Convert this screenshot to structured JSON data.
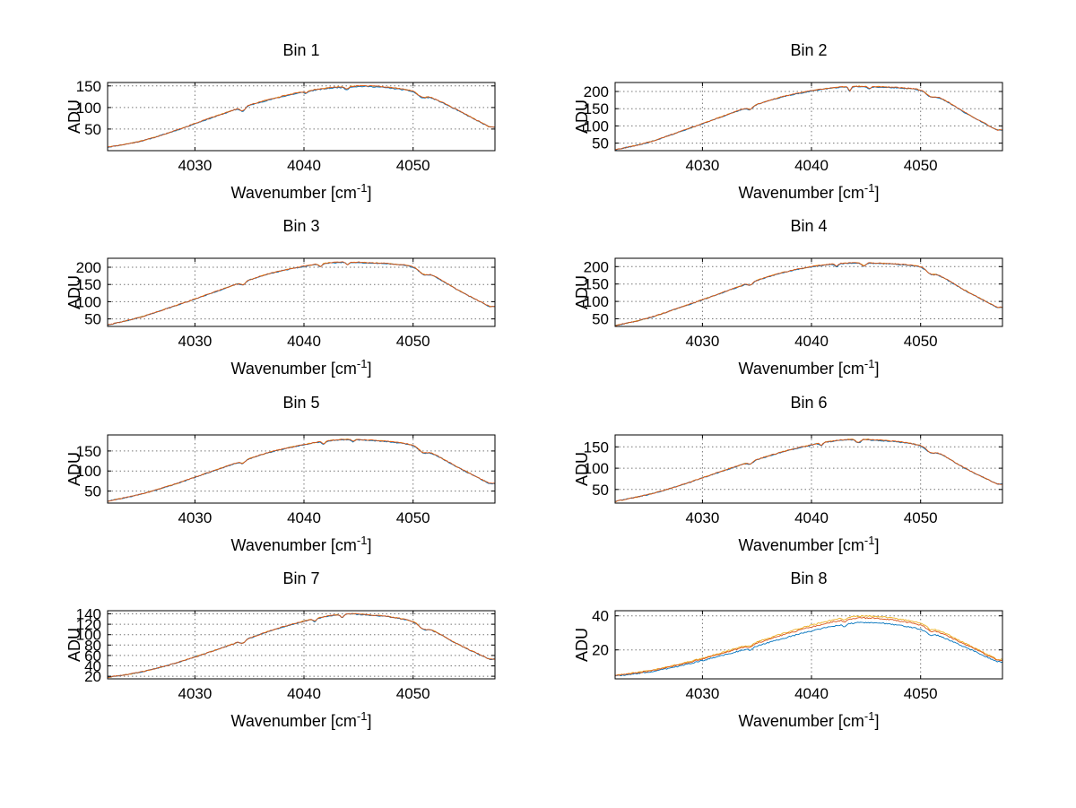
{
  "page": {
    "background": "#ffffff"
  },
  "labels": {
    "ylabel": "ADU",
    "xlabel_main": "Wavenumber [cm",
    "xlabel_sup": "-1",
    "xlabel_close": "]"
  },
  "chart_data": [
    {
      "type": "line",
      "title": "Bin 1",
      "xlabel": "Wavenumber [cm^-1]",
      "ylabel": "ADU",
      "xlim": [
        4022,
        4057.5
      ],
      "ylim": [
        0,
        158
      ],
      "xticks": [
        4030,
        4040,
        4050
      ],
      "yticks": [
        50,
        100,
        150
      ],
      "x": [
        4022,
        4025,
        4028,
        4031,
        4034,
        4037,
        4040,
        4042,
        4044,
        4046,
        4048,
        4050,
        4052,
        4054,
        4057
      ],
      "values": [
        8,
        22,
        45,
        72,
        98,
        120,
        137,
        145,
        149,
        150,
        146,
        138,
        120,
        95,
        55
      ],
      "dips": [
        {
          "x": 4034.4,
          "w": 0.3,
          "d": 9
        },
        {
          "x": 4040.2,
          "w": 0.2,
          "d": 4
        },
        {
          "x": 4043.9,
          "w": 0.25,
          "d": 6
        },
        {
          "x": 4050.8,
          "w": 0.5,
          "d": 8
        }
      ],
      "noise": 1.1,
      "series": [
        {
          "color": "#EDB120",
          "scale": 1.0,
          "seed": 5
        },
        {
          "color": "#0072BD",
          "scale": 0.99,
          "seed": 11
        },
        {
          "color": "#D95319",
          "scale": 1.0,
          "seed": 17
        }
      ]
    },
    {
      "type": "line",
      "title": "Bin 2",
      "xlabel": "Wavenumber [cm^-1]",
      "ylabel": "ADU",
      "xlim": [
        4022,
        4057.5
      ],
      "ylim": [
        28,
        226
      ],
      "xticks": [
        4030,
        4040,
        4050
      ],
      "yticks": [
        50,
        100,
        150,
        200
      ],
      "x": [
        4022,
        4025,
        4028,
        4031,
        4034,
        4037,
        4040,
        4042,
        4044,
        4046,
        4048,
        4050,
        4052,
        4054,
        4057
      ],
      "values": [
        30,
        52,
        84,
        118,
        152,
        182,
        202,
        211,
        215,
        214,
        211,
        204,
        178,
        140,
        88
      ],
      "dips": [
        {
          "x": 4034.4,
          "w": 0.3,
          "d": 8
        },
        {
          "x": 4043.5,
          "w": 0.18,
          "d": 12
        },
        {
          "x": 4045.3,
          "w": 0.2,
          "d": 6
        },
        {
          "x": 4050.9,
          "w": 0.5,
          "d": 10
        }
      ],
      "noise": 1.3,
      "series": [
        {
          "color": "#EDB120",
          "scale": 1.0,
          "seed": 105
        },
        {
          "color": "#0072BD",
          "scale": 0.995,
          "seed": 111
        },
        {
          "color": "#D95319",
          "scale": 1.0,
          "seed": 117
        }
      ]
    },
    {
      "type": "line",
      "title": "Bin 3",
      "xlabel": "Wavenumber [cm^-1]",
      "ylabel": "ADU",
      "xlim": [
        4022,
        4057.5
      ],
      "ylim": [
        28,
        226
      ],
      "xticks": [
        4030,
        4040,
        4050
      ],
      "yticks": [
        50,
        100,
        150,
        200
      ],
      "x": [
        4022,
        4025,
        4028,
        4031,
        4034,
        4037,
        4040,
        4042,
        4044,
        4046,
        4048,
        4050,
        4052,
        4054,
        4057
      ],
      "values": [
        32,
        55,
        86,
        119,
        153,
        183,
        203,
        212,
        215,
        213,
        210,
        201,
        173,
        136,
        86
      ],
      "dips": [
        {
          "x": 4034.4,
          "w": 0.3,
          "d": 8
        },
        {
          "x": 4041.5,
          "w": 0.2,
          "d": 8
        },
        {
          "x": 4044.0,
          "w": 0.2,
          "d": 7
        },
        {
          "x": 4050.9,
          "w": 0.5,
          "d": 10
        }
      ],
      "noise": 1.3,
      "series": [
        {
          "color": "#EDB120",
          "scale": 1.0,
          "seed": 205
        },
        {
          "color": "#0072BD",
          "scale": 0.995,
          "seed": 211
        },
        {
          "color": "#D95319",
          "scale": 1.0,
          "seed": 217
        }
      ]
    },
    {
      "type": "line",
      "title": "Bin 4",
      "xlabel": "Wavenumber [cm^-1]",
      "ylabel": "ADU",
      "xlim": [
        4022,
        4057.5
      ],
      "ylim": [
        28,
        224
      ],
      "xticks": [
        4030,
        4040,
        4050
      ],
      "yticks": [
        50,
        100,
        150,
        200
      ],
      "x": [
        4022,
        4025,
        4028,
        4031,
        4034,
        4037,
        4040,
        4042,
        4044,
        4046,
        4048,
        4050,
        4052,
        4054,
        4057
      ],
      "values": [
        30,
        52,
        83,
        116,
        150,
        180,
        200,
        208,
        211,
        210,
        207,
        199,
        170,
        133,
        83
      ],
      "dips": [
        {
          "x": 4034.4,
          "w": 0.3,
          "d": 7
        },
        {
          "x": 4042.3,
          "w": 0.2,
          "d": 8
        },
        {
          "x": 4044.8,
          "w": 0.25,
          "d": 9
        },
        {
          "x": 4050.9,
          "w": 0.45,
          "d": 9
        }
      ],
      "noise": 1.3,
      "series": [
        {
          "color": "#EDB120",
          "scale": 1.0,
          "seed": 305
        },
        {
          "color": "#0072BD",
          "scale": 0.995,
          "seed": 311
        },
        {
          "color": "#D95319",
          "scale": 1.0,
          "seed": 317
        }
      ]
    },
    {
      "type": "line",
      "title": "Bin 5",
      "xlabel": "Wavenumber [cm^-1]",
      "ylabel": "ADU",
      "xlim": [
        4022,
        4057.5
      ],
      "ylim": [
        20,
        190
      ],
      "xticks": [
        4030,
        4040,
        4050
      ],
      "yticks": [
        50,
        100,
        150
      ],
      "x": [
        4022,
        4025,
        4028,
        4031,
        4034,
        4037,
        4040,
        4042,
        4044,
        4046,
        4048,
        4050,
        4052,
        4054,
        4057
      ],
      "values": [
        25,
        42,
        66,
        94,
        122,
        148,
        166,
        175,
        179,
        177,
        173,
        164,
        141,
        111,
        69
      ],
      "dips": [
        {
          "x": 4034.4,
          "w": 0.3,
          "d": 6
        },
        {
          "x": 4041.8,
          "w": 0.2,
          "d": 7
        },
        {
          "x": 4044.5,
          "w": 0.2,
          "d": 5
        },
        {
          "x": 4050.9,
          "w": 0.5,
          "d": 9
        }
      ],
      "noise": 1.1,
      "series": [
        {
          "color": "#EDB120",
          "scale": 1.0,
          "seed": 405
        },
        {
          "color": "#0072BD",
          "scale": 0.995,
          "seed": 411
        },
        {
          "color": "#D95319",
          "scale": 1.0,
          "seed": 417
        }
      ]
    },
    {
      "type": "line",
      "title": "Bin 6",
      "xlabel": "Wavenumber [cm^-1]",
      "ylabel": "ADU",
      "xlim": [
        4022,
        4057.5
      ],
      "ylim": [
        18,
        178
      ],
      "xticks": [
        4030,
        4040,
        4050
      ],
      "yticks": [
        50,
        100,
        150
      ],
      "x": [
        4022,
        4025,
        4028,
        4031,
        4034,
        4037,
        4040,
        4042,
        4044,
        4046,
        4048,
        4050,
        4052,
        4054,
        4057
      ],
      "values": [
        22,
        38,
        60,
        86,
        112,
        136,
        155,
        164,
        168,
        166,
        162,
        153,
        131,
        101,
        63
      ],
      "dips": [
        {
          "x": 4034.4,
          "w": 0.3,
          "d": 6
        },
        {
          "x": 4040.9,
          "w": 0.2,
          "d": 6
        },
        {
          "x": 4044.3,
          "w": 0.3,
          "d": 8
        },
        {
          "x": 4050.9,
          "w": 0.5,
          "d": 8
        }
      ],
      "noise": 1.1,
      "series": [
        {
          "color": "#EDB120",
          "scale": 1.0,
          "seed": 505
        },
        {
          "color": "#0072BD",
          "scale": 0.995,
          "seed": 511
        },
        {
          "color": "#D95319",
          "scale": 1.0,
          "seed": 517
        }
      ]
    },
    {
      "type": "line",
      "title": "Bin 7",
      "xlabel": "Wavenumber [cm^-1]",
      "ylabel": "ADU",
      "xlim": [
        4022,
        4057.5
      ],
      "ylim": [
        15,
        146
      ],
      "xticks": [
        4030,
        4040,
        4050
      ],
      "yticks": [
        20,
        40,
        60,
        80,
        100,
        120,
        140
      ],
      "x": [
        4022,
        4025,
        4028,
        4031,
        4034,
        4037,
        4040,
        4042,
        4044,
        4046,
        4048,
        4050,
        4052,
        4054,
        4057
      ],
      "values": [
        18,
        28,
        44,
        64,
        86,
        108,
        126,
        135,
        140,
        138,
        134,
        125,
        106,
        83,
        53
      ],
      "dips": [
        {
          "x": 4034.4,
          "w": 0.3,
          "d": 5
        },
        {
          "x": 4041.0,
          "w": 0.2,
          "d": 5
        },
        {
          "x": 4043.5,
          "w": 0.2,
          "d": 6
        },
        {
          "x": 4050.9,
          "w": 0.45,
          "d": 7
        }
      ],
      "noise": 0.9,
      "series": [
        {
          "color": "#EDB120",
          "scale": 1.0,
          "seed": 605
        },
        {
          "color": "#0072BD",
          "scale": 0.995,
          "seed": 611
        },
        {
          "color": "#D95319",
          "scale": 1.0,
          "seed": 617
        }
      ]
    },
    {
      "type": "line",
      "title": "Bin 8",
      "xlabel": "Wavenumber [cm^-1]",
      "ylabel": "ADU",
      "xlim": [
        4022,
        4057.5
      ],
      "ylim": [
        3,
        43
      ],
      "xticks": [
        4030,
        4040,
        4050
      ],
      "yticks": [
        20,
        40
      ],
      "x": [
        4022,
        4025,
        4028,
        4031,
        4034,
        4037,
        4040,
        4042,
        4044,
        4046,
        4048,
        4050,
        4052,
        4054,
        4057
      ],
      "values": [
        5,
        7.5,
        11.5,
        16.5,
        22,
        28,
        33.5,
        36.5,
        38.5,
        38.5,
        37,
        34.5,
        29.5,
        23.5,
        14
      ],
      "dips": [
        {
          "x": 4034.4,
          "w": 0.3,
          "d": 1.2
        },
        {
          "x": 4043.0,
          "w": 0.2,
          "d": 1.5
        },
        {
          "x": 4050.9,
          "w": 0.4,
          "d": 1.5
        }
      ],
      "noise": 0.35,
      "series": [
        {
          "color": "#EDB120",
          "scale": 1.03,
          "seed": 705
        },
        {
          "color": "#0072BD",
          "scale": 0.93,
          "seed": 711
        },
        {
          "color": "#D95319",
          "scale": 1.0,
          "seed": 717
        }
      ]
    }
  ]
}
